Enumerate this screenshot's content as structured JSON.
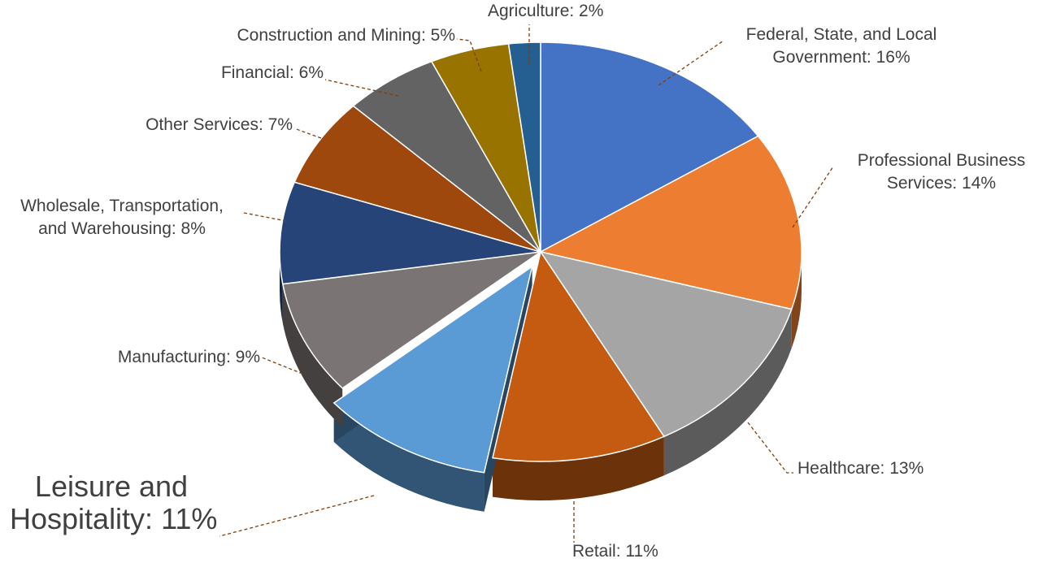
{
  "chart_data": {
    "type": "pie",
    "title": "",
    "slices": [
      {
        "label": "Federal, State, and Local Government",
        "value": 16,
        "display": "Federal, State, and Local Government: 16%",
        "color": "#4472C4"
      },
      {
        "label": "Professional Business Services",
        "value": 14,
        "display": "Professional Business Services: 14%",
        "color": "#ED7D31"
      },
      {
        "label": "Healthcare",
        "value": 13,
        "display": "Healthcare: 13%",
        "color": "#A5A5A5"
      },
      {
        "label": "Retail",
        "value": 11,
        "display": "Retail: 11%",
        "color": "#C55A11"
      },
      {
        "label": "Leisure and Hospitality",
        "value": 11,
        "display": "Leisure and Hospitality: 11%",
        "color": "#5B9BD5",
        "exploded": true
      },
      {
        "label": "Manufacturing",
        "value": 9,
        "display": "Manufacturing: 9%",
        "color": "#7B7474"
      },
      {
        "label": "Wholesale, Transportation, and Warehousing",
        "value": 8,
        "display": "Wholesale, Transportation, and Warehousing: 8%",
        "color": "#264478"
      },
      {
        "label": "Other Services",
        "value": 7,
        "display": "Other Services: 7%",
        "color": "#9E480E"
      },
      {
        "label": "Financial",
        "value": 6,
        "display": "Financial: 6%",
        "color": "#636363"
      },
      {
        "label": "Construction and Mining",
        "value": 5,
        "display": "Construction and Mining: 5%",
        "color": "#997300"
      },
      {
        "label": "Agriculture",
        "value": 2,
        "display": "Agriculture: 2%",
        "color": "#255E91"
      }
    ],
    "labels": {
      "federal": [
        "Federal, State, and Local",
        "Government: 16%"
      ],
      "professional": [
        "Professional Business",
        "Services: 14%"
      ],
      "healthcare": "Healthcare: 13%",
      "retail": "Retail: 11%",
      "leisure": [
        "Leisure and",
        "Hospitality: 11%"
      ],
      "manufacturing": "Manufacturing: 9%",
      "wholesale": [
        "Wholesale, Transportation,",
        "and Warehousing: 8%"
      ],
      "other": "Other Services: 7%",
      "financial": "Financial: 6%",
      "construction": "Construction and Mining: 5%",
      "agriculture": "Agriculture: 2%"
    },
    "leader_color": "#843C0C",
    "legend": "none"
  }
}
